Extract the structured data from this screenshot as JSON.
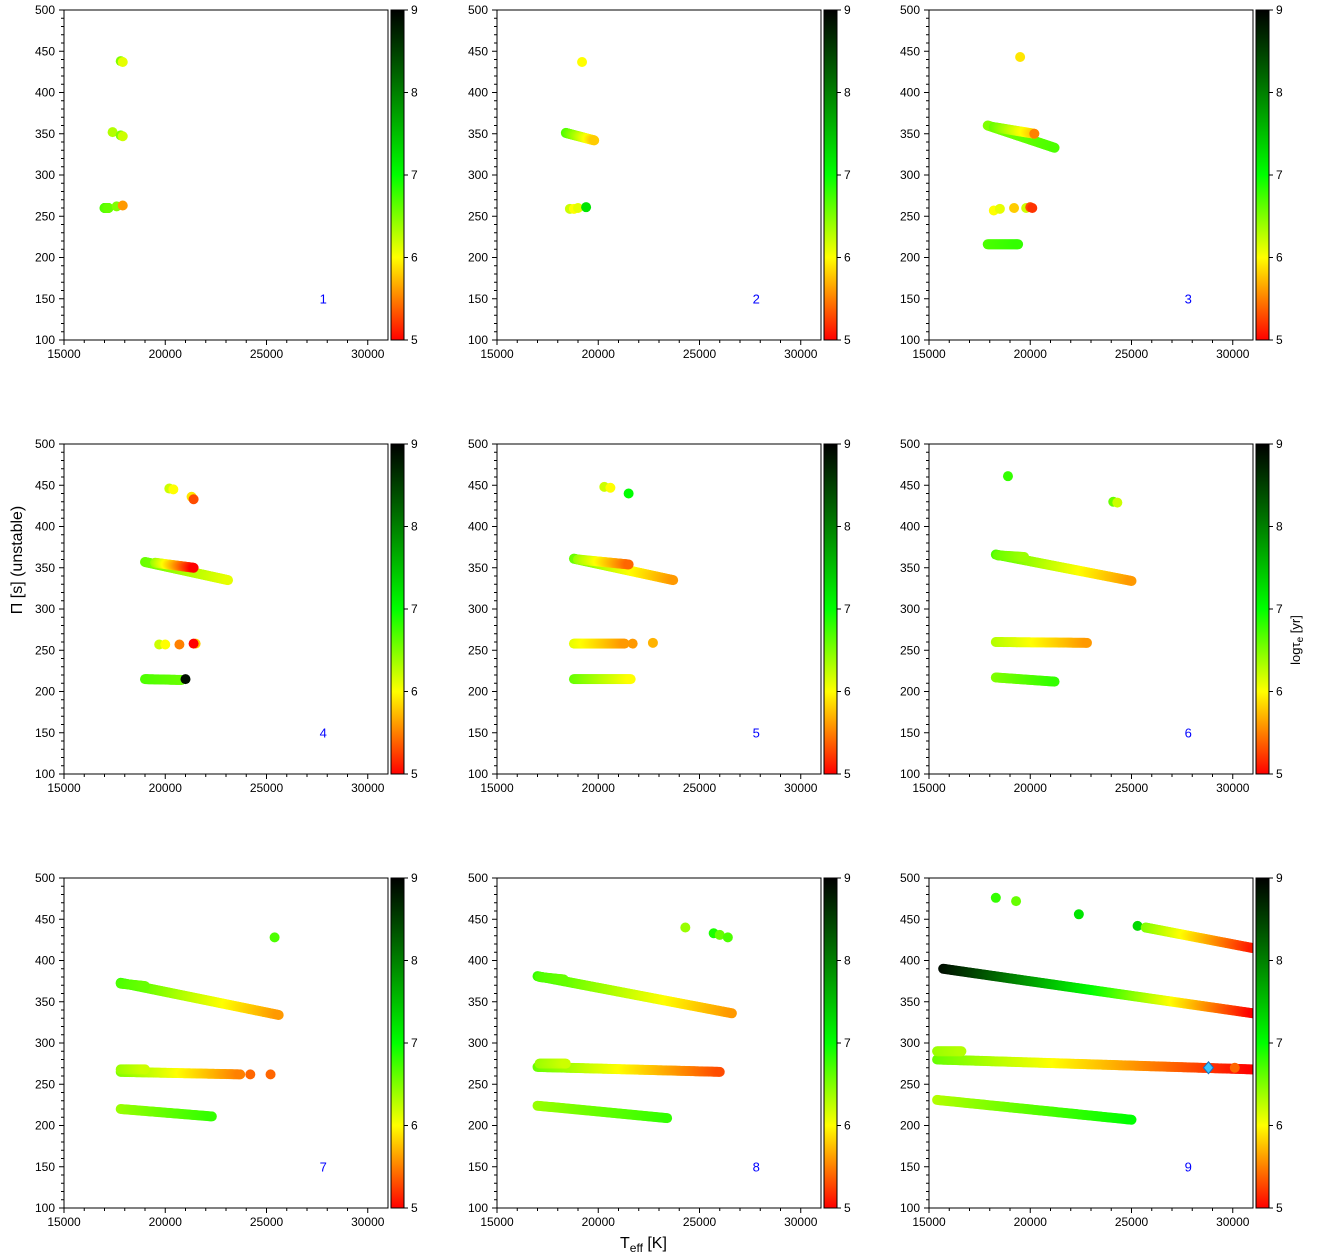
{
  "figure": {
    "xlabel_main": "T",
    "xlabel_sub": "eff",
    "xlabel_unit": " [K]",
    "ylabel": "Π [s] (unstable)",
    "cbar_label_main": "log",
    "cbar_label_tau": "τ",
    "cbar_label_sub": "e",
    "cbar_label_unit": " [yr]"
  },
  "chart_data": {
    "type": "scatter",
    "xlim": [
      15000,
      31000
    ],
    "ylim": [
      100,
      500
    ],
    "xticks": [
      15000,
      20000,
      25000,
      30000
    ],
    "yticks": [
      100,
      150,
      200,
      250,
      300,
      350,
      400,
      450,
      500
    ],
    "colorbar": {
      "range": [
        5,
        9
      ],
      "ticks": [
        5,
        6,
        7,
        8,
        9
      ],
      "colors": [
        "#ff0000",
        "#ffff00",
        "#00ff00",
        "#000000"
      ]
    },
    "panels": [
      {
        "label": "1",
        "series": [
          {
            "pts": [
              [
                17800,
                438,
                6.5
              ],
              [
                17900,
                437,
                6.1
              ]
            ]
          },
          {
            "pts": [
              [
                17400,
                352,
                6.3
              ],
              [
                17800,
                348,
                6.5
              ],
              [
                17900,
                347,
                6.2
              ]
            ]
          },
          {
            "tracks": [
              [
                17000,
                260,
                6.7,
                17200,
                260,
                6.6,
                30
              ]
            ]
          },
          {
            "pts": [
              [
                17600,
                262,
                6.5
              ],
              [
                17900,
                263,
                5.6
              ]
            ]
          }
        ]
      },
      {
        "label": "2",
        "series": [
          {
            "pts": [
              [
                19200,
                437,
                6.0
              ]
            ]
          },
          {
            "tracks": [
              [
                18400,
                351,
                6.7,
                19800,
                342,
                5.8,
                45
              ]
            ]
          },
          {
            "pts": [
              [
                18600,
                259,
                6.2
              ],
              [
                18800,
                259,
                6.0
              ],
              [
                19000,
                260,
                6.1
              ],
              [
                19400,
                261,
                7.2
              ]
            ]
          }
        ]
      },
      {
        "label": "3",
        "series": [
          {
            "pts": [
              [
                19500,
                443,
                5.9
              ]
            ]
          },
          {
            "tracks": [
              [
                17900,
                360,
                6.5,
                21200,
                333,
                6.7,
                80
              ],
              [
                18200,
                358,
                6.6,
                20200,
                350,
                5.8,
                40
              ]
            ]
          },
          {
            "pts": [
              [
                18200,
                257,
                6.0
              ],
              [
                18500,
                259,
                6.1
              ],
              [
                19200,
                260,
                5.8
              ],
              [
                19800,
                260,
                6.2
              ],
              [
                20000,
                261,
                5.3
              ],
              [
                20100,
                260,
                5.2
              ]
            ]
          },
          {
            "tracks": [
              [
                17900,
                216,
                6.7,
                19400,
                216,
                6.8,
                40
              ]
            ]
          },
          {
            "pts": [
              [
                20200,
                350,
                5.5
              ]
            ]
          }
        ]
      },
      {
        "label": "4",
        "series": [
          {
            "pts": [
              [
                20200,
                446,
                6.2
              ],
              [
                20400,
                445,
                6.0
              ],
              [
                21300,
                436,
                5.9
              ],
              [
                21400,
                433,
                5.3
              ]
            ]
          },
          {
            "tracks": [
              [
                19000,
                357,
                6.6,
                23100,
                335,
                6.1,
                100
              ],
              [
                19500,
                356,
                6.4,
                21400,
                350,
                5.0,
                40
              ]
            ]
          },
          {
            "pts": [
              [
                19700,
                257,
                6.2
              ],
              [
                20000,
                257,
                6.0
              ],
              [
                20700,
                257,
                5.5
              ],
              [
                21500,
                258,
                5.8
              ],
              [
                21400,
                258,
                5.0
              ]
            ]
          },
          {
            "tracks": [
              [
                19000,
                215,
                6.7,
                20800,
                214,
                6.6,
                40
              ]
            ]
          },
          {
            "pts": [
              [
                21000,
                215,
                8.9
              ]
            ]
          }
        ]
      },
      {
        "label": "5",
        "series": [
          {
            "pts": [
              [
                20300,
                448,
                6.2
              ],
              [
                20600,
                447,
                6.0
              ],
              [
                21500,
                440,
                7.0
              ]
            ]
          },
          {
            "tracks": [
              [
                18800,
                361,
                6.6,
                23700,
                335,
                5.6,
                110
              ],
              [
                19000,
                360,
                6.4,
                21500,
                354,
                5.4,
                50
              ]
            ]
          },
          {
            "tracks": [
              [
                18800,
                258,
                6.1,
                21300,
                258,
                5.6,
                50
              ]
            ]
          },
          {
            "pts": [
              [
                21700,
                258,
                5.6
              ],
              [
                22700,
                259,
                5.7
              ]
            ]
          },
          {
            "tracks": [
              [
                18800,
                215,
                6.6,
                21600,
                215,
                6.0,
                50
              ]
            ]
          }
        ]
      },
      {
        "label": "6",
        "series": [
          {
            "pts": [
              [
                18900,
                461,
                6.8
              ],
              [
                24100,
                430,
                6.6
              ],
              [
                24300,
                429,
                6.2
              ]
            ]
          },
          {
            "tracks": [
              [
                18300,
                366,
                6.7,
                25000,
                334,
                5.6,
                130
              ],
              [
                18400,
                365,
                6.6,
                19700,
                363,
                6.4,
                30
              ]
            ]
          },
          {
            "tracks": [
              [
                18300,
                260,
                6.3,
                22800,
                259,
                5.6,
                70
              ]
            ]
          },
          {
            "tracks": [
              [
                18300,
                217,
                6.5,
                21200,
                212,
                6.8,
                50
              ]
            ]
          }
        ]
      },
      {
        "label": "7",
        "series": [
          {
            "pts": [
              [
                25400,
                428,
                6.7
              ]
            ]
          },
          {
            "tracks": [
              [
                17800,
                373,
                6.8,
                25600,
                334,
                5.6,
                150
              ],
              [
                17800,
                372,
                6.7,
                19000,
                369,
                6.6,
                30
              ]
            ]
          },
          {
            "tracks": [
              [
                17800,
                265,
                6.5,
                23700,
                262,
                5.5,
                90
              ],
              [
                17800,
                268,
                6.4,
                19000,
                268,
                6.2,
                30
              ]
            ]
          },
          {
            "pts": [
              [
                24200,
                262,
                5.4
              ],
              [
                25200,
                262,
                5.4
              ]
            ]
          },
          {
            "tracks": [
              [
                17800,
                220,
                6.4,
                22300,
                211,
                6.8,
                70
              ]
            ]
          }
        ]
      },
      {
        "label": "8",
        "series": [
          {
            "pts": [
              [
                24300,
                440,
                6.4
              ],
              [
                25700,
                433,
                6.9
              ],
              [
                26000,
                431,
                6.6
              ],
              [
                26400,
                428,
                6.7
              ]
            ]
          },
          {
            "tracks": [
              [
                17000,
                381,
                6.8,
                26600,
                336,
                5.6,
                170
              ],
              [
                17100,
                380,
                6.7,
                18300,
                377,
                6.6,
                30
              ]
            ]
          },
          {
            "tracks": [
              [
                17000,
                271,
                6.6,
                26000,
                265,
                5.3,
                150
              ],
              [
                17100,
                275,
                6.4,
                18400,
                275,
                6.2,
                30
              ]
            ]
          },
          {
            "tracks": [
              [
                17000,
                224,
                6.4,
                23400,
                209,
                6.8,
                100
              ]
            ]
          }
        ]
      },
      {
        "label": "9",
        "series": [
          {
            "pts": [
              [
                18300,
                476,
                6.8
              ],
              [
                19300,
                472,
                6.6
              ],
              [
                22400,
                456,
                7.2
              ],
              [
                25300,
                442,
                7.3
              ]
            ]
          },
          {
            "tracks": [
              [
                25700,
                440,
                6.5,
                31000,
                415,
                5.1,
                100
              ]
            ]
          },
          {
            "tracks": [
              [
                15700,
                390,
                8.9,
                31000,
                336,
                5.0,
                250
              ]
            ]
          },
          {
            "tracks": [
              [
                15400,
                280,
                6.6,
                31000,
                268,
                5.0,
                250
              ],
              [
                15400,
                290,
                6.4,
                16600,
                290,
                6.3,
                30
              ]
            ]
          },
          {
            "pts": [
              [
                30100,
                270,
                5.4
              ]
            ]
          },
          {
            "tracks": [
              [
                15400,
                231,
                6.3,
                25000,
                207,
                7.0,
                150
              ]
            ]
          },
          {
            "marker": [
              28800,
              270
            ]
          }
        ]
      }
    ]
  }
}
